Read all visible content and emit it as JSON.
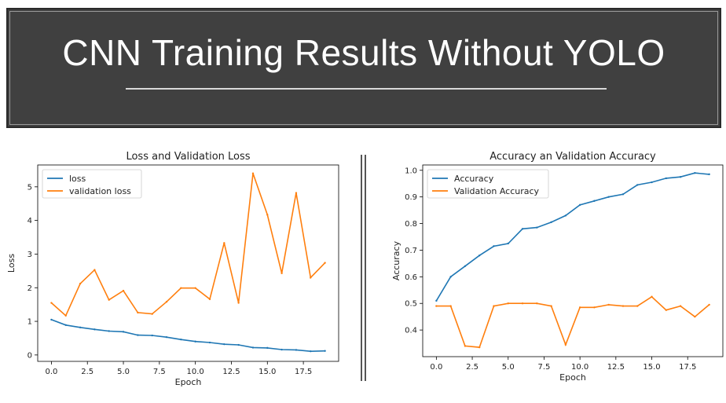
{
  "banner": {
    "title": "CNN Training Results Without YOLO"
  },
  "colors": {
    "series1": "#1f77b4",
    "series2": "#ff7f0e"
  },
  "chart_data": [
    {
      "type": "line",
      "title": "Loss and Validation Loss",
      "xlabel": "Epoch",
      "ylabel": "Loss",
      "xlim": [
        -0.95,
        19.95
      ],
      "ylim": [
        -0.19,
        5.65
      ],
      "xticks": [
        0,
        2.5,
        5,
        7.5,
        10,
        12.5,
        15,
        17.5
      ],
      "xtick_labels": [
        "0.0",
        "2.5",
        "5.0",
        "7.5",
        "10.0",
        "12.5",
        "15.0",
        "17.5"
      ],
      "yticks": [
        0,
        1,
        2,
        3,
        4,
        5
      ],
      "ytick_labels": [
        "0",
        "1",
        "2",
        "3",
        "4",
        "5"
      ],
      "legend_position": "top-left",
      "grid": false,
      "x": [
        0,
        1,
        2,
        3,
        4,
        5,
        6,
        7,
        8,
        9,
        10,
        11,
        12,
        13,
        14,
        15,
        16,
        17,
        18,
        19
      ],
      "series": [
        {
          "name": "loss",
          "values": [
            1.05,
            0.89,
            0.82,
            0.76,
            0.71,
            0.69,
            0.59,
            0.58,
            0.53,
            0.46,
            0.4,
            0.37,
            0.32,
            0.3,
            0.22,
            0.21,
            0.16,
            0.15,
            0.11,
            0.12
          ]
        },
        {
          "name": "validation loss",
          "values": [
            1.55,
            1.17,
            2.12,
            2.53,
            1.64,
            1.91,
            1.26,
            1.22,
            1.58,
            1.99,
            1.99,
            1.66,
            3.33,
            1.55,
            5.4,
            4.17,
            2.43,
            4.82,
            2.3,
            2.74
          ]
        }
      ]
    },
    {
      "type": "line",
      "title": "Accuracy an Validation Accuracy",
      "xlabel": "Epoch",
      "ylabel": "Accuracy",
      "xlim": [
        -0.95,
        19.95
      ],
      "ylim": [
        0.3,
        1.02
      ],
      "xticks": [
        0,
        2.5,
        5,
        7.5,
        10,
        12.5,
        15,
        17.5
      ],
      "xtick_labels": [
        "0.0",
        "2.5",
        "5.0",
        "7.5",
        "10.0",
        "12.5",
        "15.0",
        "17.5"
      ],
      "yticks": [
        0.4,
        0.5,
        0.6,
        0.7,
        0.8,
        0.9,
        1.0
      ],
      "ytick_labels": [
        "0.4",
        "0.5",
        "0.6",
        "0.7",
        "0.8",
        "0.9",
        "1.0"
      ],
      "legend_position": "top-left",
      "grid": false,
      "x": [
        0,
        1,
        2,
        3,
        4,
        5,
        6,
        7,
        8,
        9,
        10,
        11,
        12,
        13,
        14,
        15,
        16,
        17,
        18,
        19
      ],
      "series": [
        {
          "name": "Accuracy",
          "values": [
            0.51,
            0.6,
            0.64,
            0.68,
            0.715,
            0.725,
            0.78,
            0.785,
            0.805,
            0.83,
            0.87,
            0.885,
            0.9,
            0.91,
            0.945,
            0.955,
            0.97,
            0.975,
            0.99,
            0.985
          ]
        },
        {
          "name": "Validation Accuracy",
          "values": [
            0.49,
            0.49,
            0.34,
            0.335,
            0.49,
            0.5,
            0.5,
            0.5,
            0.49,
            0.345,
            0.485,
            0.485,
            0.495,
            0.49,
            0.49,
            0.525,
            0.475,
            0.49,
            0.45,
            0.495
          ]
        }
      ]
    }
  ]
}
